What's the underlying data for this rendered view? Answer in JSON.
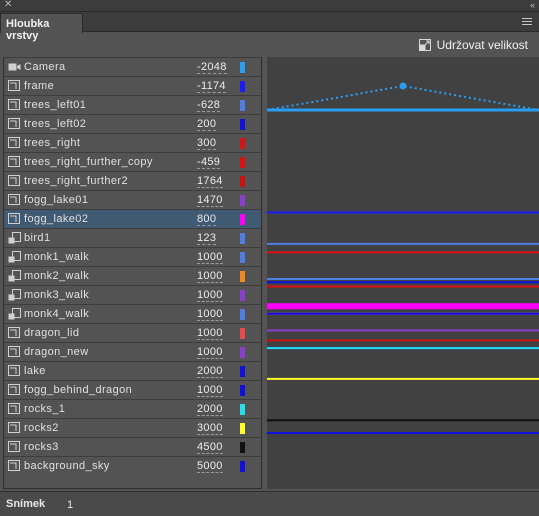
{
  "panel": {
    "close_glyph": "✕",
    "collapse_glyph": "‹‹",
    "tab_title": "Hloubka vrstvy",
    "menu_icon": "hamburger-icon"
  },
  "keep_size": {
    "label": "Udržovat velikost",
    "icon": "resize-icon"
  },
  "layers": [
    {
      "name": "Camera",
      "depth": "-2048",
      "color": "#2a9df4",
      "icon": "camera-icon"
    },
    {
      "name": "frame",
      "depth": "-1174",
      "color": "#1a1aff",
      "icon": "layer-icon"
    },
    {
      "name": "trees_left01",
      "depth": "-628",
      "color": "#4f7ee0",
      "icon": "layer-icon"
    },
    {
      "name": "trees_left02",
      "depth": "200",
      "color": "#1010dd",
      "icon": "layer-icon"
    },
    {
      "name": "trees_right",
      "depth": "300",
      "color": "#dd1111",
      "icon": "layer-icon"
    },
    {
      "name": "trees_right_further_copy",
      "depth": "-459",
      "color": "#dd1111",
      "icon": "layer-icon"
    },
    {
      "name": "trees_right_further2",
      "depth": "1764",
      "color": "#cc1111",
      "icon": "layer-icon"
    },
    {
      "name": "fogg_lake01",
      "depth": "1470",
      "color": "#8a3fd0",
      "icon": "layer-icon"
    },
    {
      "name": "fogg_lake02",
      "depth": "800",
      "color": "#ff00ff",
      "icon": "layer-icon",
      "selected": true
    },
    {
      "name": "bird1",
      "depth": "123",
      "color": "#4f7ee0",
      "icon": "motion-layer-icon"
    },
    {
      "name": "monk1_walk",
      "depth": "1000",
      "color": "#4f7ee0",
      "icon": "motion-layer-icon"
    },
    {
      "name": "monk2_walk",
      "depth": "1000",
      "color": "#f08a1a",
      "icon": "motion-layer-icon"
    },
    {
      "name": "monk3_walk",
      "depth": "1000",
      "color": "#8a3fd0",
      "icon": "motion-layer-icon"
    },
    {
      "name": "monk4_walk",
      "depth": "1000",
      "color": "#4f7ee0",
      "icon": "motion-layer-icon"
    },
    {
      "name": "dragon_lid",
      "depth": "1000",
      "color": "#e84a4a",
      "icon": "layer-icon"
    },
    {
      "name": "dragon_new",
      "depth": "1000",
      "color": "#8a3fd0",
      "icon": "layer-icon"
    },
    {
      "name": "lake",
      "depth": "2000",
      "color": "#1010dd",
      "icon": "layer-icon"
    },
    {
      "name": "fogg_behind_dragon",
      "depth": "1000",
      "color": "#1010dd",
      "icon": "layer-icon"
    },
    {
      "name": "rocks_1",
      "depth": "2000",
      "color": "#22e0f0",
      "icon": "layer-icon"
    },
    {
      "name": "rocks2",
      "depth": "3000",
      "color": "#ffff22",
      "icon": "layer-icon"
    },
    {
      "name": "rocks3",
      "depth": "4500",
      "color": "#111111",
      "icon": "layer-icon"
    },
    {
      "name": "background_sky",
      "depth": "5000",
      "color": "#1010dd",
      "icon": "layer-icon"
    }
  ],
  "status": {
    "frame_label": "Snímek",
    "frame_value": "1"
  }
}
